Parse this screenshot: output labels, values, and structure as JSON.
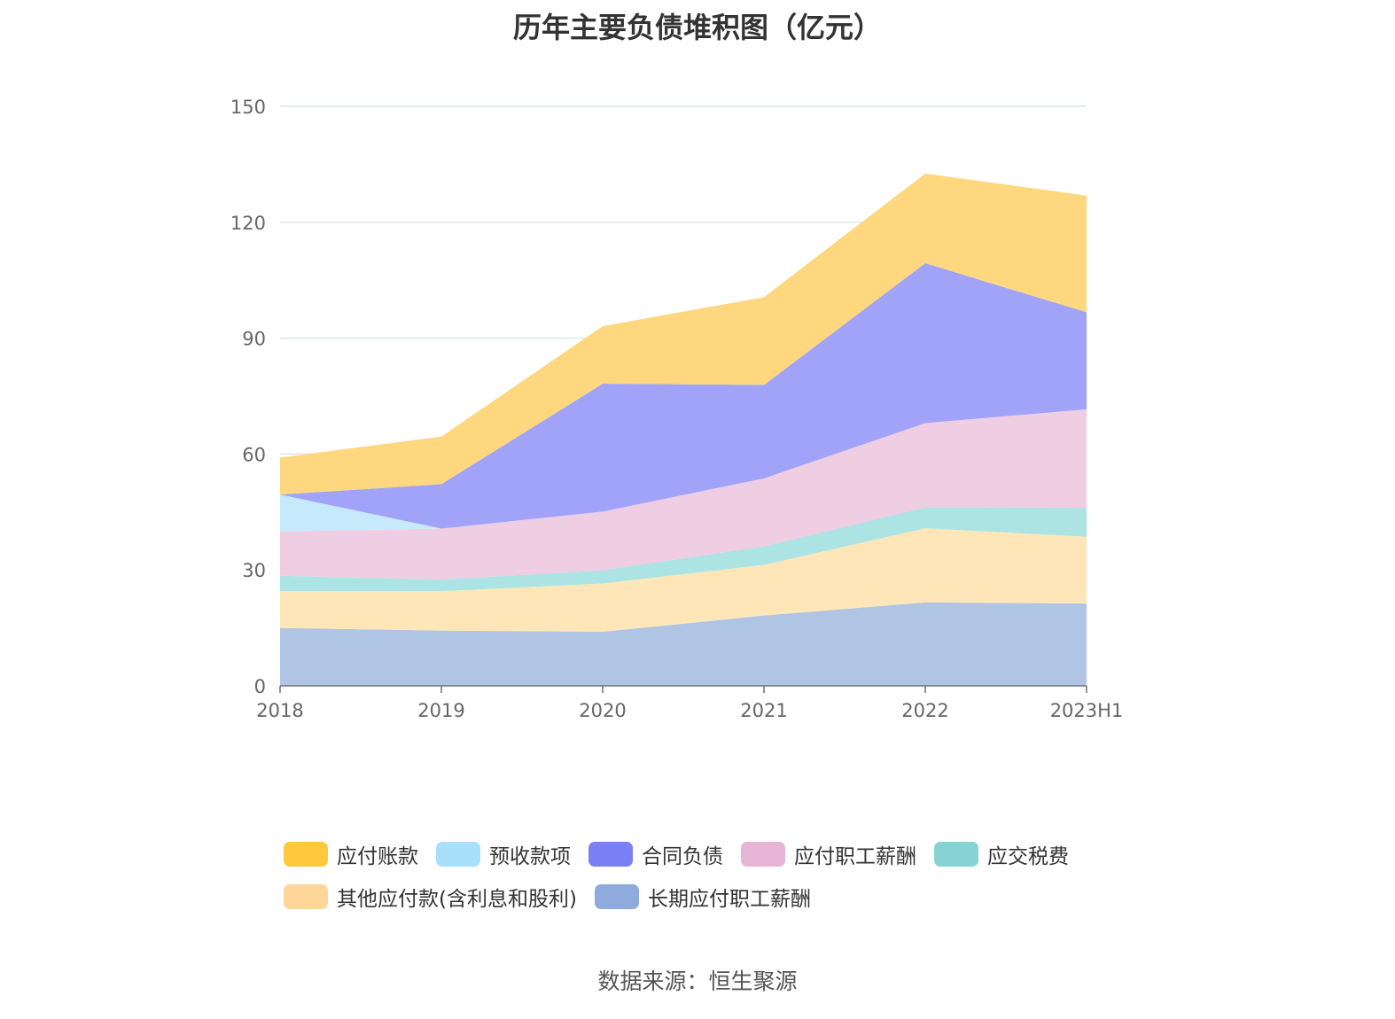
{
  "chart_data": {
    "type": "area",
    "stacked": true,
    "title": "历年主要负债堆积图（亿元）",
    "categories": [
      "2018",
      "2019",
      "2020",
      "2021",
      "2022",
      "2023H1"
    ],
    "ylim": [
      0,
      150
    ],
    "yticks": [
      0,
      30,
      60,
      90,
      120,
      150
    ],
    "grid": true,
    "legend_position": "bottom",
    "series": [
      {
        "name": "长期应付职工薪酬",
        "values": [
          15.0,
          14.3,
          14.0,
          18.2,
          21.6,
          21.3
        ],
        "color": "#8faadc",
        "fill": "#b0c4e4"
      },
      {
        "name": "其他应付款(含利息和股利)",
        "values": [
          9.5,
          10.2,
          12.5,
          13.1,
          19.2,
          17.3
        ],
        "color": "#ffd699",
        "fill": "#fee6b8"
      },
      {
        "name": "应交税费",
        "values": [
          4.0,
          3.0,
          3.4,
          4.8,
          5.4,
          7.5
        ],
        "color": "#86d3d3",
        "fill": "#ace3e3"
      },
      {
        "name": "应付职工薪酬",
        "values": [
          11.5,
          13.2,
          15.2,
          17.6,
          21.8,
          25.5
        ],
        "color": "#e8b4d6",
        "fill": "#efcde3"
      },
      {
        "name": "预收款项",
        "values": [
          9.5,
          0,
          0,
          0,
          0,
          0
        ],
        "color": "#a8e0fb",
        "fill": "#c6e9fb"
      },
      {
        "name": "合同负债",
        "values": [
          0,
          11.5,
          33.1,
          24.2,
          41.4,
          25.1
        ],
        "color": "#7b7ff5",
        "fill": "#a0a3f7"
      },
      {
        "name": "应付账款",
        "values": [
          9.6,
          12.3,
          14.9,
          22.7,
          23.2,
          30.2
        ],
        "color": "#fec93c",
        "fill": "#fed77e"
      }
    ],
    "legend_order": [
      "应付账款",
      "预收款项",
      "合同负债",
      "应付职工薪酬",
      "应交税费",
      "其他应付款(含利息和股利)",
      "长期应付职工薪酬"
    ]
  },
  "source_text": "数据来源：恒生聚源"
}
